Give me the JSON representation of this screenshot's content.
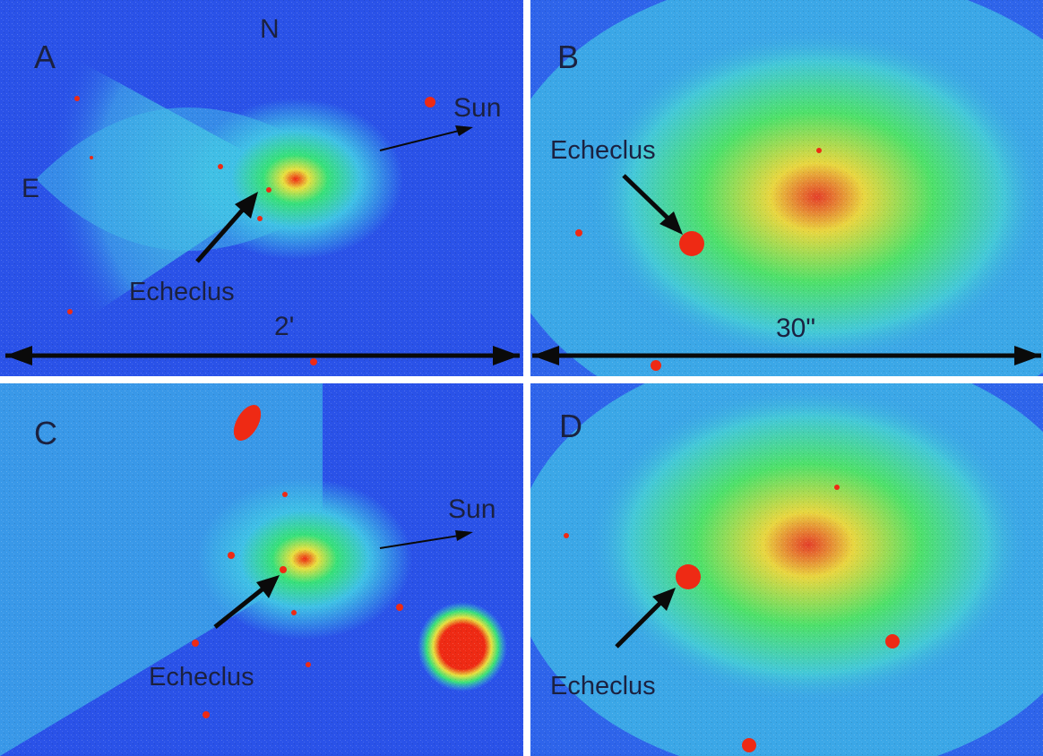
{
  "panels": {
    "a": {
      "label": "A",
      "north": "N",
      "east": "E",
      "sun": "Sun",
      "target": "Echeclus",
      "scale": "2'"
    },
    "b": {
      "label": "B",
      "target": "Echeclus",
      "scale": "30\""
    },
    "c": {
      "label": "C",
      "sun": "Sun",
      "target": "Echeclus"
    },
    "d": {
      "label": "D",
      "target": "Echeclus"
    }
  },
  "colors": {
    "background_sky": "#2a52e8",
    "coma_outer": "#3fc0e6",
    "coma_mid": "#38e07a",
    "coma_inner": "#e8e040",
    "core": "#ee2a14",
    "arrow": "#0a0a0a",
    "divider": "#ffffff"
  }
}
